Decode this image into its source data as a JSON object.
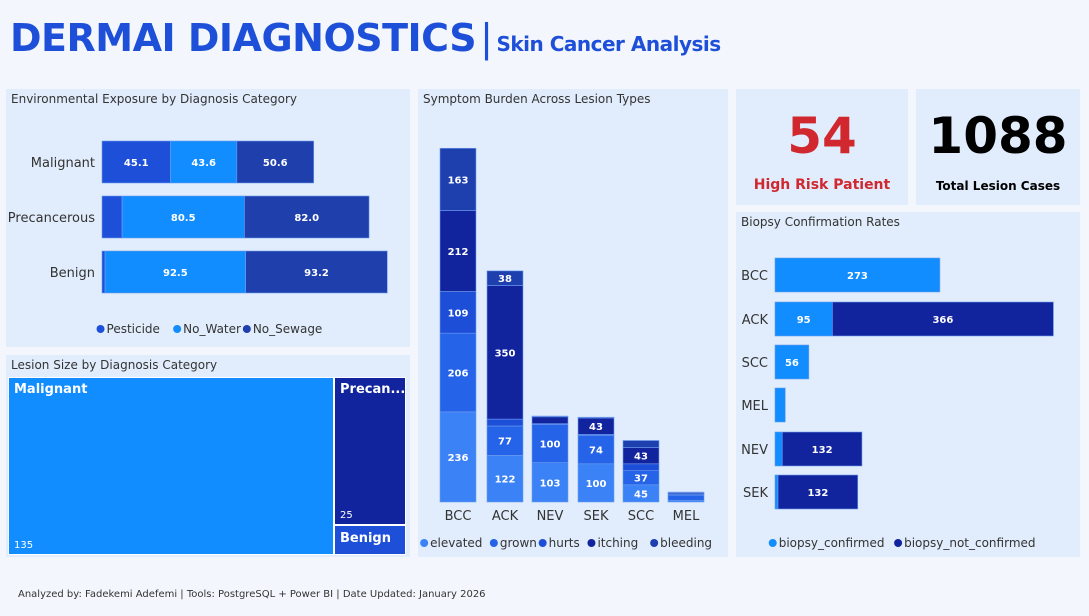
{
  "header": {
    "title": "DERMAI DIAGNOSTICS",
    "separator": "|",
    "subtitle": "Skin Cancer Analysis"
  },
  "kpis": [
    {
      "value": "54",
      "label": "High Risk Patient",
      "color": "#d0282e"
    },
    {
      "value": "1088",
      "label": "Total Lesion Cases",
      "color": "#000000"
    }
  ],
  "footer": "Analyzed by: Fadekemi Adefemi | Tools: PostgreSQL + Power BI | Date Updated: January 2026",
  "chart_data": [
    {
      "id": "env",
      "type": "bar",
      "orientation": "horizontal",
      "stacked": true,
      "title": "Environmental Exposure by Diagnosis Category",
      "categories": [
        "Malignant",
        "Precancerous",
        "Benign"
      ],
      "series": [
        {
          "name": "Pesticide",
          "values": [
            45.1,
            13.2,
            2.0
          ],
          "color": "#1e4fd8"
        },
        {
          "name": "No_Water",
          "values": [
            43.6,
            80.5,
            92.5
          ],
          "color": "#118dff"
        },
        {
          "name": "No_Sewage",
          "values": [
            50.6,
            82.0,
            93.2
          ],
          "color": "#1f3fad"
        }
      ],
      "legend": "bottom"
    },
    {
      "id": "treemap",
      "type": "treemap",
      "title": "Lesion Size by Diagnosis Category",
      "items": [
        {
          "name": "Malignant",
          "display_name": "Malignant",
          "value": 135,
          "value_label": "135",
          "color": "#118dff"
        },
        {
          "name": "Precancerous",
          "display_name": "Precan...",
          "value": 25,
          "value_label": "25",
          "color": "#12239e"
        },
        {
          "name": "Benign",
          "display_name": "Benign",
          "value": 4,
          "value_label": "",
          "color": "#1e4fd8"
        }
      ]
    },
    {
      "id": "symptom",
      "type": "bar",
      "orientation": "vertical",
      "stacked": true,
      "title": "Symptom Burden Across Lesion Types",
      "categories": [
        "BCC",
        "ACK",
        "NEV",
        "SEK",
        "SCC",
        "MEL"
      ],
      "series": [
        {
          "name": "elevated",
          "values": [
            236,
            122,
            103,
            100,
            45,
            4
          ],
          "color": "#3b82f6"
        },
        {
          "name": "grown",
          "values": [
            206,
            77,
            100,
            74,
            37,
            14
          ],
          "color": "#2563e8"
        },
        {
          "name": "hurts",
          "values": [
            109,
            18,
            2,
            3,
            18,
            3
          ],
          "color": "#1d4ed8"
        },
        {
          "name": "itching",
          "values": [
            212,
            350,
            18,
            43,
            43,
            3
          ],
          "color": "#12239e"
        },
        {
          "name": "bleeding",
          "values": [
            163,
            38,
            2,
            2,
            18,
            2
          ],
          "color": "#1e40af"
        }
      ],
      "legend": "bottom"
    },
    {
      "id": "biopsy",
      "type": "bar",
      "orientation": "horizontal",
      "stacked": true,
      "title": "Biopsy Confirmation Rates",
      "categories": [
        "BCC",
        "ACK",
        "SCC",
        "MEL",
        "NEV",
        "SEK"
      ],
      "series": [
        {
          "name": "biopsy_confirmed",
          "values": [
            273,
            95,
            56,
            17,
            12,
            5
          ],
          "color": "#118dff"
        },
        {
          "name": "biopsy_not_confirmed",
          "values": [
            0,
            366,
            0,
            0,
            132,
            132
          ],
          "color": "#12239e"
        }
      ],
      "legend": "bottom"
    }
  ]
}
